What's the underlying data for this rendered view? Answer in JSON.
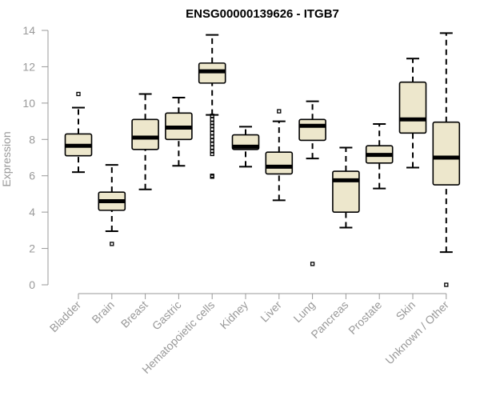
{
  "chart_data": {
    "type": "boxplot",
    "title": "ENSG00000139626 - ITGB7",
    "xlabel": "",
    "ylabel": "Expression",
    "ylim": [
      0,
      14
    ],
    "yticks": [
      0,
      2,
      4,
      6,
      8,
      10,
      12,
      14
    ],
    "grid": false,
    "box_fill": "#ede7cc",
    "stroke_color": "#000000",
    "axis_color": "#999999",
    "categories": [
      "Bladder",
      "Brain",
      "Breast",
      "Gastric",
      "Hematopoietic cells",
      "Kidney",
      "Liver",
      "Lung",
      "Pancreas",
      "Prostate",
      "Skin",
      "Unknown / Other"
    ],
    "boxes": [
      {
        "min": 6.2,
        "q1": 7.1,
        "median": 7.65,
        "q3": 8.3,
        "max": 9.75,
        "outliers": [
          10.5
        ]
      },
      {
        "min": 2.95,
        "q1": 4.1,
        "median": 4.6,
        "q3": 5.1,
        "max": 6.6,
        "outliers": [
          2.25
        ]
      },
      {
        "min": 5.25,
        "q1": 7.45,
        "median": 8.1,
        "q3": 9.1,
        "max": 10.5,
        "outliers": []
      },
      {
        "min": 6.55,
        "q1": 8.0,
        "median": 8.65,
        "q3": 9.45,
        "max": 10.3,
        "outliers": []
      },
      {
        "min": 9.35,
        "q1": 11.1,
        "median": 11.75,
        "q3": 12.2,
        "max": 13.75,
        "outliers": [
          9.3,
          9.1,
          8.9,
          8.75,
          8.55,
          8.35,
          8.15,
          7.95,
          7.75,
          7.55,
          7.35,
          7.2,
          6.0,
          5.95
        ]
      },
      {
        "min": 6.5,
        "q1": 7.45,
        "median": 7.6,
        "q3": 8.25,
        "max": 8.7,
        "outliers": []
      },
      {
        "min": 4.65,
        "q1": 6.1,
        "median": 6.5,
        "q3": 7.3,
        "max": 9.0,
        "outliers": [
          9.55
        ]
      },
      {
        "min": 6.95,
        "q1": 7.95,
        "median": 8.75,
        "q3": 9.1,
        "max": 10.1,
        "outliers": [
          1.15
        ]
      },
      {
        "min": 3.15,
        "q1": 4.0,
        "median": 5.75,
        "q3": 6.25,
        "max": 7.55,
        "outliers": []
      },
      {
        "min": 5.3,
        "q1": 6.7,
        "median": 7.15,
        "q3": 7.65,
        "max": 8.85,
        "outliers": []
      },
      {
        "min": 6.45,
        "q1": 8.35,
        "median": 9.1,
        "q3": 11.15,
        "max": 12.45,
        "outliers": []
      },
      {
        "min": 1.8,
        "q1": 5.5,
        "median": 7.0,
        "q3": 8.95,
        "max": 13.85,
        "outliers": [
          0.0
        ]
      }
    ]
  }
}
